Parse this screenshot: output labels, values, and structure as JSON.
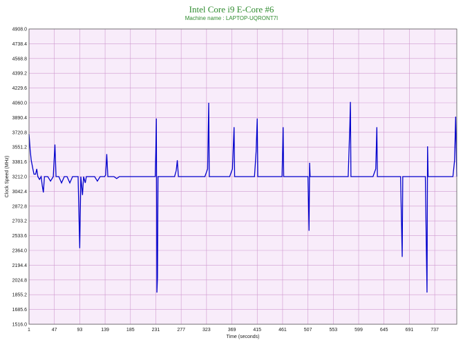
{
  "chart_data": {
    "type": "line",
    "title": "Intel Core i9 E-Core #6",
    "subtitle": "Machine name : LAPTOP-UQRONT7I",
    "xlabel": "Time (seconds)",
    "ylabel": "Clock Speed (MHz)",
    "xlim": [
      1,
      777
    ],
    "ylim": [
      1516.0,
      4908.0
    ],
    "grid": true,
    "colors": {
      "line": "#0000cc",
      "plot_bg": "#f8ecfa",
      "grid": "#cf98cf",
      "title": "#2e8b2e"
    },
    "x_ticks": [
      "1",
      "47",
      "93",
      "139",
      "185",
      "231",
      "277",
      "323",
      "369",
      "415",
      "461",
      "507",
      "553",
      "599",
      "645",
      "691",
      "737"
    ],
    "y_ticks": [
      "1516.0",
      "1685.6",
      "1855.2",
      "2024.8",
      "2194.4",
      "2364.0",
      "2533.6",
      "2703.2",
      "2872.8",
      "3042.4",
      "3212.0",
      "3381.6",
      "3551.2",
      "3720.8",
      "3890.4",
      "4060.0",
      "4229.6",
      "4399.2",
      "4568.8",
      "4738.4",
      "4908.0"
    ],
    "series": [
      {
        "values": [
          [
            1,
            3700
          ],
          [
            3,
            3520
          ],
          [
            5,
            3400
          ],
          [
            8,
            3300
          ],
          [
            10,
            3240
          ],
          [
            13,
            3240
          ],
          [
            15,
            3300
          ],
          [
            17,
            3212
          ],
          [
            20,
            3180
          ],
          [
            23,
            3212
          ],
          [
            25,
            3110
          ],
          [
            27,
            3030
          ],
          [
            29,
            3212
          ],
          [
            35,
            3212
          ],
          [
            40,
            3160
          ],
          [
            45,
            3212
          ],
          [
            48,
            3580
          ],
          [
            50,
            3212
          ],
          [
            55,
            3212
          ],
          [
            60,
            3140
          ],
          [
            65,
            3212
          ],
          [
            70,
            3212
          ],
          [
            75,
            3140
          ],
          [
            80,
            3212
          ],
          [
            85,
            3212
          ],
          [
            90,
            3212
          ],
          [
            93,
            2390
          ],
          [
            95,
            3212
          ],
          [
            98,
            3000
          ],
          [
            100,
            3212
          ],
          [
            103,
            3140
          ],
          [
            105,
            3212
          ],
          [
            110,
            3212
          ],
          [
            115,
            3212
          ],
          [
            120,
            3212
          ],
          [
            125,
            3160
          ],
          [
            130,
            3212
          ],
          [
            135,
            3212
          ],
          [
            138,
            3212
          ],
          [
            140,
            3230
          ],
          [
            142,
            3470
          ],
          [
            144,
            3212
          ],
          [
            150,
            3212
          ],
          [
            155,
            3212
          ],
          [
            160,
            3190
          ],
          [
            165,
            3212
          ],
          [
            170,
            3212
          ],
          [
            175,
            3212
          ],
          [
            180,
            3212
          ],
          [
            185,
            3212
          ],
          [
            190,
            3212
          ],
          [
            195,
            3212
          ],
          [
            200,
            3212
          ],
          [
            205,
            3212
          ],
          [
            210,
            3212
          ],
          [
            215,
            3212
          ],
          [
            220,
            3212
          ],
          [
            225,
            3212
          ],
          [
            230,
            3212
          ],
          [
            231,
            3500
          ],
          [
            232,
            3880
          ],
          [
            233,
            1880
          ],
          [
            234,
            2050
          ],
          [
            235,
            3212
          ],
          [
            240,
            3212
          ],
          [
            245,
            3212
          ],
          [
            250,
            3212
          ],
          [
            255,
            3212
          ],
          [
            260,
            3212
          ],
          [
            265,
            3212
          ],
          [
            268,
            3280
          ],
          [
            270,
            3400
          ],
          [
            272,
            3212
          ],
          [
            280,
            3212
          ],
          [
            285,
            3212
          ],
          [
            290,
            3212
          ],
          [
            295,
            3212
          ],
          [
            300,
            3212
          ],
          [
            305,
            3212
          ],
          [
            310,
            3212
          ],
          [
            315,
            3212
          ],
          [
            320,
            3212
          ],
          [
            325,
            3300
          ],
          [
            327,
            4060
          ],
          [
            328,
            3212
          ],
          [
            335,
            3212
          ],
          [
            340,
            3212
          ],
          [
            345,
            3212
          ],
          [
            350,
            3212
          ],
          [
            355,
            3212
          ],
          [
            360,
            3212
          ],
          [
            365,
            3212
          ],
          [
            370,
            3300
          ],
          [
            373,
            3780
          ],
          [
            374,
            3212
          ],
          [
            380,
            3212
          ],
          [
            385,
            3212
          ],
          [
            390,
            3212
          ],
          [
            395,
            3212
          ],
          [
            400,
            3212
          ],
          [
            405,
            3212
          ],
          [
            410,
            3212
          ],
          [
            413,
            3500
          ],
          [
            415,
            3880
          ],
          [
            416,
            3212
          ],
          [
            425,
            3212
          ],
          [
            430,
            3212
          ],
          [
            435,
            3212
          ],
          [
            440,
            3212
          ],
          [
            445,
            3212
          ],
          [
            450,
            3212
          ],
          [
            455,
            3212
          ],
          [
            460,
            3212
          ],
          [
            462,
            3780
          ],
          [
            463,
            3212
          ],
          [
            470,
            3212
          ],
          [
            475,
            3212
          ],
          [
            480,
            3212
          ],
          [
            485,
            3212
          ],
          [
            490,
            3212
          ],
          [
            495,
            3212
          ],
          [
            500,
            3212
          ],
          [
            505,
            3212
          ],
          [
            507,
            3212
          ],
          [
            509,
            2590
          ],
          [
            510,
            3370
          ],
          [
            511,
            3212
          ],
          [
            520,
            3212
          ],
          [
            525,
            3212
          ],
          [
            530,
            3212
          ],
          [
            535,
            3212
          ],
          [
            540,
            3212
          ],
          [
            545,
            3212
          ],
          [
            550,
            3212
          ],
          [
            553,
            3212
          ],
          [
            555,
            3212
          ],
          [
            560,
            3212
          ],
          [
            565,
            3212
          ],
          [
            570,
            3212
          ],
          [
            575,
            3212
          ],
          [
            580,
            3212
          ],
          [
            583,
            3800
          ],
          [
            584,
            4070
          ],
          [
            585,
            3212
          ],
          [
            590,
            3212
          ],
          [
            595,
            3212
          ],
          [
            600,
            3212
          ],
          [
            605,
            3212
          ],
          [
            610,
            3212
          ],
          [
            615,
            3212
          ],
          [
            620,
            3212
          ],
          [
            625,
            3212
          ],
          [
            630,
            3300
          ],
          [
            632,
            3780
          ],
          [
            633,
            3212
          ],
          [
            640,
            3212
          ],
          [
            645,
            3212
          ],
          [
            650,
            3212
          ],
          [
            655,
            3212
          ],
          [
            660,
            3212
          ],
          [
            665,
            3212
          ],
          [
            670,
            3212
          ],
          [
            675,
            3212
          ],
          [
            678,
            2290
          ],
          [
            679,
            3212
          ],
          [
            685,
            3212
          ],
          [
            690,
            3212
          ],
          [
            695,
            3212
          ],
          [
            700,
            3212
          ],
          [
            705,
            3212
          ],
          [
            710,
            3212
          ],
          [
            715,
            3212
          ],
          [
            720,
            3212
          ],
          [
            722,
            2300
          ],
          [
            723,
            1880
          ],
          [
            724,
            3560
          ],
          [
            725,
            3212
          ],
          [
            730,
            3212
          ],
          [
            735,
            3212
          ],
          [
            740,
            3212
          ],
          [
            745,
            3212
          ],
          [
            750,
            3212
          ],
          [
            755,
            3212
          ],
          [
            760,
            3212
          ],
          [
            765,
            3212
          ],
          [
            770,
            3212
          ],
          [
            773,
            3400
          ],
          [
            775,
            3900
          ],
          [
            777,
            3212
          ]
        ]
      }
    ]
  }
}
